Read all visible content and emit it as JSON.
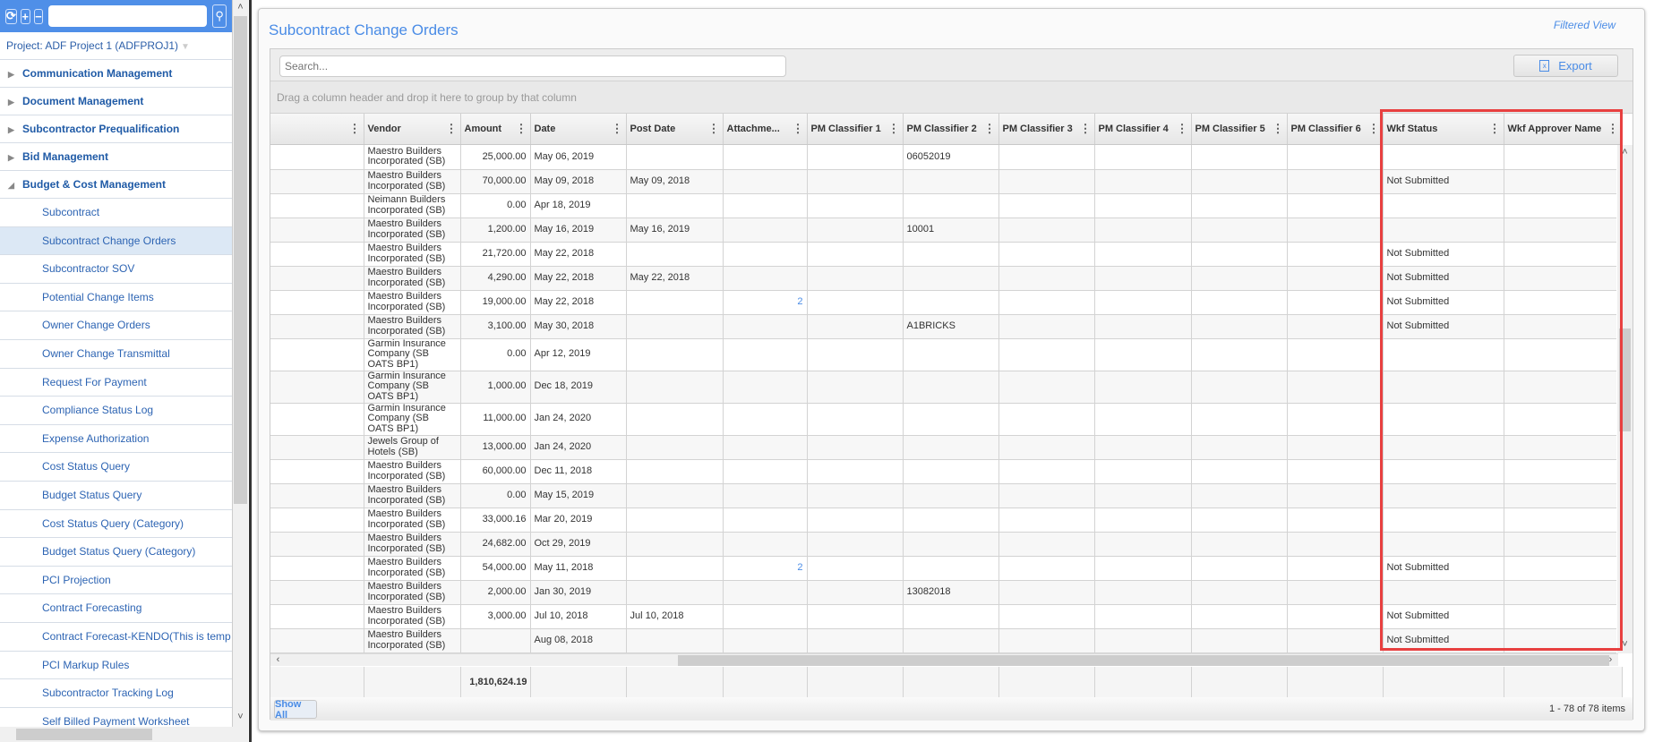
{
  "sidebar": {
    "toolbar": {
      "refresh_icon": "refresh-icon",
      "expand_icon": "plus-icon",
      "collapse_icon": "minus-icon",
      "search_icon": "search-icon"
    },
    "project": "Project: ADF Project 1 (ADFPROJ1)",
    "categories": [
      {
        "label": "Communication Management",
        "expanded": false
      },
      {
        "label": "Document Management",
        "expanded": false
      },
      {
        "label": "Subcontractor Prequalification",
        "expanded": false
      },
      {
        "label": "Bid Management",
        "expanded": false
      },
      {
        "label": "Budget & Cost Management",
        "expanded": true
      }
    ],
    "items": [
      "Subcontract",
      "Subcontract Change Orders",
      "Subcontractor SOV",
      "Potential Change Items",
      "Owner Change Orders",
      "Owner Change Transmittal",
      "Request For Payment",
      "Compliance Status Log",
      "Expense Authorization",
      "Cost Status Query",
      "Budget Status Query",
      "Cost Status Query (Category)",
      "Budget Status Query (Category)",
      "PCI Projection",
      "Contract Forecasting",
      "Contract Forecast-KENDO(This is temp",
      "PCI Markup Rules",
      "Subcontractor Tracking Log",
      "Self Billed Payment Worksheet"
    ],
    "active_item": "Subcontract Change Orders"
  },
  "main": {
    "title": "Subcontract Change Orders",
    "filtered_view": "Filtered View",
    "search_placeholder": "Search...",
    "export_label": "Export",
    "group_hint": "Drag a column header and drop it here to group by that column",
    "columns": [
      "",
      "Vendor",
      "Amount",
      "Date",
      "Post Date",
      "Attachme...",
      "PM Classifier 1",
      "PM Classifier 2",
      "PM Classifier 3",
      "PM Classifier 4",
      "PM Classifier 5",
      "PM Classifier 6",
      "Wkf Status",
      "Wkf Approver Name"
    ],
    "rows": [
      [
        "",
        "Maestro Builders Incorporated (SB)",
        "25,000.00",
        "May 06, 2019",
        "",
        "",
        "",
        "06052019",
        "",
        "",
        "",
        "",
        "",
        ""
      ],
      [
        "",
        "Maestro Builders Incorporated (SB)",
        "70,000.00",
        "May 09, 2018",
        "May 09, 2018",
        "",
        "",
        "",
        "",
        "",
        "",
        "",
        "Not Submitted",
        ""
      ],
      [
        "",
        "Neimann Builders Incorporated (SB)",
        "0.00",
        "Apr 18, 2019",
        "",
        "",
        "",
        "",
        "",
        "",
        "",
        "",
        "",
        ""
      ],
      [
        "",
        "Maestro Builders Incorporated (SB)",
        "1,200.00",
        "May 16, 2019",
        "May 16, 2019",
        "",
        "",
        "10001",
        "",
        "",
        "",
        "",
        "",
        ""
      ],
      [
        "",
        "Maestro Builders Incorporated (SB)",
        "21,720.00",
        "May 22, 2018",
        "",
        "",
        "",
        "",
        "",
        "",
        "",
        "",
        "Not Submitted",
        ""
      ],
      [
        "",
        "Maestro Builders Incorporated (SB)",
        "4,290.00",
        "May 22, 2018",
        "May 22, 2018",
        "",
        "",
        "",
        "",
        "",
        "",
        "",
        "Not Submitted",
        ""
      ],
      [
        "",
        "Maestro Builders Incorporated (SB)",
        "19,000.00",
        "May 22, 2018",
        "",
        "2",
        "",
        "",
        "",
        "",
        "",
        "",
        "Not Submitted",
        ""
      ],
      [
        "",
        "Maestro Builders Incorporated (SB)",
        "3,100.00",
        "May 30, 2018",
        "",
        "",
        "",
        "A1BRICKS",
        "",
        "",
        "",
        "",
        "Not Submitted",
        ""
      ],
      [
        "",
        "Garmin Insurance Company (SB OATS BP1)",
        "0.00",
        "Apr 12, 2019",
        "",
        "",
        "",
        "",
        "",
        "",
        "",
        "",
        "",
        ""
      ],
      [
        "",
        "Garmin Insurance Company (SB OATS BP1)",
        "1,000.00",
        "Dec 18, 2019",
        "",
        "",
        "",
        "",
        "",
        "",
        "",
        "",
        "",
        ""
      ],
      [
        "",
        "Garmin Insurance Company (SB OATS BP1)",
        "11,000.00",
        "Jan 24, 2020",
        "",
        "",
        "",
        "",
        "",
        "",
        "",
        "",
        "",
        ""
      ],
      [
        "",
        "Jewels Group of Hotels (SB)",
        "13,000.00",
        "Jan 24, 2020",
        "",
        "",
        "",
        "",
        "",
        "",
        "",
        "",
        "",
        ""
      ],
      [
        "",
        "Maestro Builders Incorporated (SB)",
        "60,000.00",
        "Dec 11, 2018",
        "",
        "",
        "",
        "",
        "",
        "",
        "",
        "",
        "",
        ""
      ],
      [
        "",
        "Maestro Builders Incorporated (SB)",
        "0.00",
        "May 15, 2019",
        "",
        "",
        "",
        "",
        "",
        "",
        "",
        "",
        "",
        ""
      ],
      [
        "",
        "Maestro Builders Incorporated (SB)",
        "33,000.16",
        "Mar 20, 2019",
        "",
        "",
        "",
        "",
        "",
        "",
        "",
        "",
        "",
        ""
      ],
      [
        "",
        "Maestro Builders Incorporated (SB)",
        "24,682.00",
        "Oct 29, 2019",
        "",
        "",
        "",
        "",
        "",
        "",
        "",
        "",
        "",
        ""
      ],
      [
        "",
        "Maestro Builders Incorporated (SB)",
        "54,000.00",
        "May 11, 2018",
        "",
        "2",
        "",
        "",
        "",
        "",
        "",
        "",
        "Not Submitted",
        ""
      ],
      [
        "",
        "Maestro Builders Incorporated (SB)",
        "2,000.00",
        "Jan 30, 2019",
        "",
        "",
        "",
        "13082018",
        "",
        "",
        "",
        "",
        "",
        ""
      ],
      [
        "",
        "Maestro Builders Incorporated (SB)",
        "3,000.00",
        "Jul 10, 2018",
        "Jul 10, 2018",
        "",
        "",
        "",
        "",
        "",
        "",
        "",
        "Not Submitted",
        ""
      ],
      [
        "",
        "Maestro Builders Incorporated (SB)",
        "",
        "Aug 08, 2018",
        "",
        "",
        "",
        "",
        "",
        "",
        "",
        "",
        "Not Submitted",
        ""
      ]
    ],
    "footer_total_amount": "1,810,624.19",
    "show_all_label": "Show All",
    "pager_info": "1 - 78 of 78 items"
  },
  "colors": {
    "accent": "#4a8ce6",
    "sidebar_header": "#4f8fe8",
    "highlight": "#e84040"
  }
}
